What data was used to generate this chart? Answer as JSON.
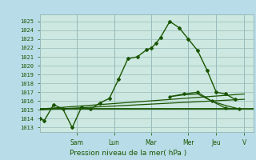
{
  "background_color": "#b8dde8",
  "plot_bg_color": "#cce8e0",
  "grid_color_major": "#99bbbb",
  "grid_color_minor": "#bbddcc",
  "line_color": "#1a5500",
  "title": "Pression niveau de la mer( hPa )",
  "ylim": [
    1012.5,
    1025.8
  ],
  "yticks": [
    1013,
    1014,
    1015,
    1016,
    1017,
    1018,
    1019,
    1020,
    1021,
    1022,
    1023,
    1024,
    1025
  ],
  "day_labels": [
    "Sam",
    "Lun",
    "Mar",
    "Mer",
    "Jeu",
    "V"
  ],
  "day_positions": [
    4,
    8,
    12,
    16,
    19,
    22
  ],
  "xlim": [
    0,
    23
  ],
  "series1_x": [
    0,
    0.5,
    1.5,
    2.5,
    3.5,
    4.5,
    5.5,
    6.5,
    7.5,
    8.5,
    9.5,
    10.5,
    11.5,
    12.0,
    12.5,
    13.0,
    14.0,
    15.0,
    16.0,
    17.0,
    18.0,
    19.0,
    20.0,
    21.0
  ],
  "series1_y": [
    1014.0,
    1013.8,
    1015.6,
    1015.1,
    1013.0,
    1015.3,
    1015.1,
    1015.8,
    1016.3,
    1018.5,
    1020.8,
    1021.0,
    1021.8,
    1022.0,
    1022.5,
    1023.2,
    1025.0,
    1024.3,
    1023.0,
    1021.7,
    1019.5,
    1017.0,
    1016.8,
    1016.2
  ],
  "series1_marker_x": [
    0,
    0.5,
    1.5,
    2.5,
    3.5,
    4.5,
    5.5,
    6.5,
    7.5,
    8.5,
    9.5,
    10.5,
    11.5,
    12.0,
    12.5,
    13.0,
    14.0,
    15.0,
    16.0,
    17.0,
    18.0,
    19.0,
    20.0,
    21.0
  ],
  "flat_line_y": 1015.1,
  "trend_x": [
    0,
    22
  ],
  "trend_y": [
    1015.0,
    1016.2
  ],
  "trend2_x": [
    0,
    22
  ],
  "trend2_y": [
    1015.1,
    1016.8
  ],
  "post_series_x": [
    14.0,
    15.5,
    17.0,
    18.5,
    20.0,
    21.5
  ],
  "post_series_y": [
    1016.5,
    1016.8,
    1017.0,
    1016.0,
    1015.2,
    1015.1
  ],
  "post_series2_x": [
    14.0,
    15.5,
    17.0,
    18.5,
    20.0,
    21.5
  ],
  "post_series2_y": [
    1016.5,
    1016.7,
    1016.8,
    1016.0,
    1015.5,
    1015.1
  ]
}
